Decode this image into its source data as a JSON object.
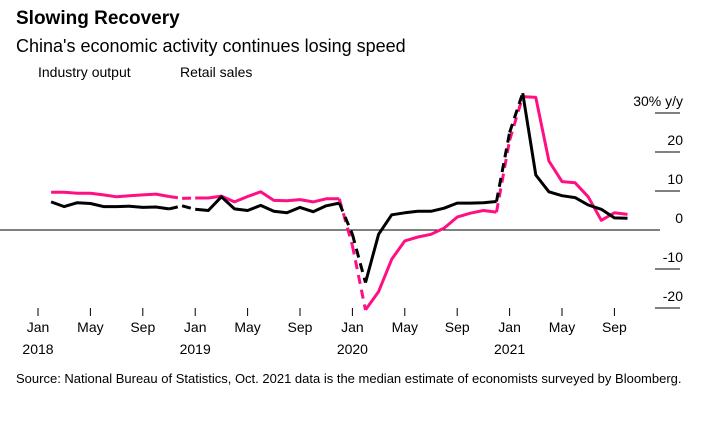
{
  "title": "Slowing Recovery",
  "subtitle": "China's economic activity continues losing speed",
  "legend": {
    "industry": "Industry output",
    "retail": "Retail sales"
  },
  "source": "Source: National Bureau of Statistics, Oct. 2021 data is the median estimate of economists surveyed by Bloomberg.",
  "chart_data": {
    "type": "line",
    "title": "Slowing Recovery",
    "subtitle": "China's economic activity continues losing speed",
    "xlabel": "",
    "ylabel": "% y/y",
    "ylim": [
      -22,
      35
    ],
    "y_ticks": [
      30,
      20,
      10,
      0,
      -10,
      -20
    ],
    "y_tick_labels": [
      "30% y/y",
      "20",
      "10",
      "0",
      "-10",
      "-20"
    ],
    "x_range": [
      0,
      46
    ],
    "x_ticks": [
      {
        "m": 0,
        "label": "Jan",
        "year": "2018"
      },
      {
        "m": 4,
        "label": "May",
        "year": ""
      },
      {
        "m": 8,
        "label": "Sep",
        "year": ""
      },
      {
        "m": 12,
        "label": "Jan",
        "year": "2019"
      },
      {
        "m": 16,
        "label": "May",
        "year": ""
      },
      {
        "m": 20,
        "label": "Sep",
        "year": ""
      },
      {
        "m": 24,
        "label": "Jan",
        "year": "2020"
      },
      {
        "m": 28,
        "label": "May",
        "year": ""
      },
      {
        "m": 32,
        "label": "Sep",
        "year": ""
      },
      {
        "m": 36,
        "label": "Jan",
        "year": "2021"
      },
      {
        "m": 40,
        "label": "May",
        "year": ""
      },
      {
        "m": 44,
        "label": "Sep",
        "year": ""
      }
    ],
    "dashed_gaps": [
      [
        10,
        12
      ],
      [
        23,
        25
      ],
      [
        35,
        37
      ]
    ],
    "legend_position": "top-left",
    "series": [
      {
        "name": "Industry output",
        "color": "#000000",
        "points": [
          [
            1,
            7.2
          ],
          [
            2,
            6.0
          ],
          [
            3,
            7.0
          ],
          [
            4,
            6.8
          ],
          [
            5,
            6.0
          ],
          [
            6,
            6.0
          ],
          [
            7,
            6.1
          ],
          [
            8,
            5.8
          ],
          [
            9,
            5.9
          ],
          [
            10,
            5.4
          ],
          [
            11,
            6.2
          ],
          [
            12,
            5.3
          ],
          [
            13,
            5.0
          ],
          [
            14,
            8.5
          ],
          [
            15,
            5.4
          ],
          [
            16,
            5.0
          ],
          [
            17,
            6.3
          ],
          [
            18,
            4.8
          ],
          [
            19,
            4.4
          ],
          [
            20,
            5.8
          ],
          [
            21,
            4.7
          ],
          [
            22,
            6.2
          ],
          [
            23,
            6.9
          ],
          [
            24,
            -1.1
          ],
          [
            25,
            -13.5
          ],
          [
            26,
            -1.1
          ],
          [
            27,
            3.9
          ],
          [
            28,
            4.4
          ],
          [
            29,
            4.8
          ],
          [
            30,
            4.8
          ],
          [
            31,
            5.6
          ],
          [
            32,
            6.9
          ],
          [
            33,
            6.9
          ],
          [
            34,
            7.0
          ],
          [
            35,
            7.3
          ],
          [
            36,
            25.0
          ],
          [
            37,
            35.1
          ],
          [
            38,
            14.1
          ],
          [
            39,
            9.8
          ],
          [
            40,
            8.8
          ],
          [
            41,
            8.3
          ],
          [
            42,
            6.4
          ],
          [
            43,
            5.3
          ],
          [
            44,
            3.1
          ],
          [
            45,
            3.0
          ]
        ]
      },
      {
        "name": "Retail sales",
        "color": "#ff0f84",
        "points": [
          [
            1,
            9.7
          ],
          [
            2,
            9.7
          ],
          [
            3,
            9.4
          ],
          [
            4,
            9.4
          ],
          [
            5,
            9.0
          ],
          [
            6,
            8.5
          ],
          [
            7,
            8.8
          ],
          [
            8,
            9.0
          ],
          [
            9,
            9.2
          ],
          [
            10,
            8.6
          ],
          [
            11,
            8.1
          ],
          [
            12,
            8.2
          ],
          [
            13,
            8.2
          ],
          [
            14,
            8.7
          ],
          [
            15,
            7.2
          ],
          [
            16,
            8.6
          ],
          [
            17,
            9.8
          ],
          [
            18,
            7.6
          ],
          [
            19,
            7.5
          ],
          [
            20,
            7.8
          ],
          [
            21,
            7.2
          ],
          [
            22,
            8.0
          ],
          [
            23,
            8.0
          ],
          [
            24,
            -4.0
          ],
          [
            25,
            -20.5
          ],
          [
            26,
            -15.8
          ],
          [
            27,
            -7.5
          ],
          [
            28,
            -2.8
          ],
          [
            29,
            -1.8
          ],
          [
            30,
            -1.1
          ],
          [
            31,
            0.5
          ],
          [
            32,
            3.3
          ],
          [
            33,
            4.3
          ],
          [
            34,
            5.0
          ],
          [
            35,
            4.6
          ],
          [
            36,
            23.0
          ],
          [
            37,
            34.2
          ],
          [
            38,
            34.0
          ],
          [
            39,
            17.7
          ],
          [
            40,
            12.4
          ],
          [
            41,
            12.1
          ],
          [
            42,
            8.5
          ],
          [
            43,
            2.5
          ],
          [
            44,
            4.4
          ],
          [
            45,
            4.0
          ]
        ]
      }
    ]
  }
}
